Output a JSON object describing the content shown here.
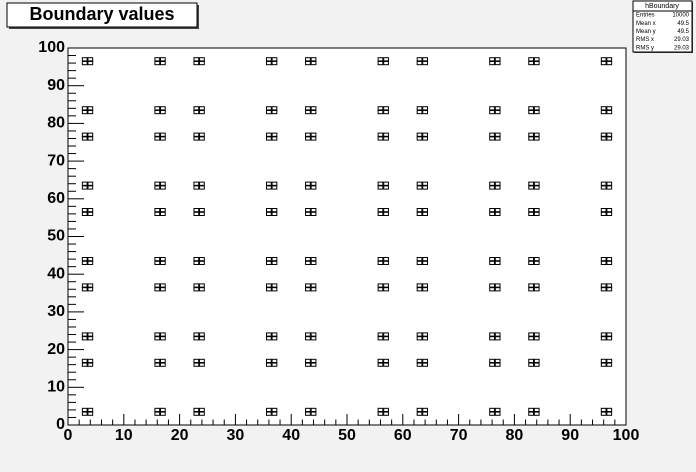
{
  "chart_data": {
    "type": "box2d",
    "title": "Boundary values",
    "stats_title": "hBoundary",
    "stats": [
      {
        "label": "Entries",
        "value": 10000
      },
      {
        "label": "Mean x",
        "value": 49.5
      },
      {
        "label": "Mean y",
        "value": 49.5
      },
      {
        "label": "RMS x",
        "value": 29.03
      },
      {
        "label": "RMS y",
        "value": 29.03
      }
    ],
    "x_bins": [
      3,
      4,
      16,
      17,
      23,
      24,
      36,
      37,
      43,
      44,
      56,
      57,
      63,
      64,
      76,
      77,
      83,
      84,
      96,
      97
    ],
    "y_bins": [
      3,
      4,
      16,
      17,
      23,
      24,
      36,
      37,
      43,
      44,
      56,
      57,
      63,
      64,
      76,
      77,
      83,
      84,
      96,
      97
    ],
    "content": 25,
    "xlim": [
      0,
      100
    ],
    "ylim": [
      0,
      100
    ],
    "xticks": [
      0,
      10,
      20,
      30,
      40,
      50,
      60,
      70,
      80,
      90,
      100
    ],
    "yticks": [
      0,
      10,
      20,
      30,
      40,
      50,
      60,
      70,
      80,
      90,
      100
    ],
    "grid": false
  }
}
